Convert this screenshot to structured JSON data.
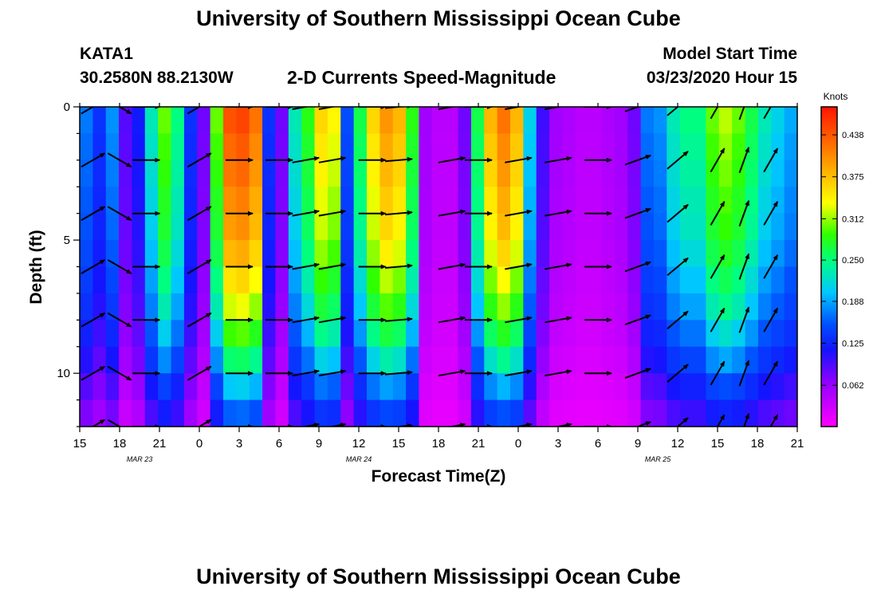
{
  "header": {
    "title": "University of Southern Mississippi Ocean Cube",
    "station": "KATA1",
    "coords": "30.2580N 88.2130W",
    "subtitle": "2-D Currents Speed-Magnitude",
    "start_label": "Model Start Time",
    "start_value": "03/23/2020 Hour 15"
  },
  "footer": {
    "title": "University of Southern Mississippi Ocean Cube"
  },
  "chart_data": {
    "type": "heatmap",
    "xlabel": "Forecast Time(Z)",
    "ylabel": "Depth (ft)",
    "x_range_hours": [
      0,
      54
    ],
    "y_range_ft": [
      0,
      12
    ],
    "y_inverted": true,
    "x_tick_labels": [
      "15",
      "18",
      "21",
      "0",
      "3",
      "6",
      "9",
      "12",
      "15",
      "18",
      "21",
      "0",
      "3",
      "6",
      "9",
      "12",
      "15",
      "18",
      "21"
    ],
    "y_tick_labels": [
      "0",
      "5",
      "10"
    ],
    "y_tick_values": [
      0,
      5,
      10
    ],
    "date_labels": [
      {
        "text": "MAR 23",
        "x_hour": 4.5
      },
      {
        "text": "MAR 24",
        "x_hour": 21
      },
      {
        "text": "MAR 25",
        "x_hour": 43.5
      }
    ],
    "colorbar": {
      "unit_label": "Knots",
      "min": 0.0,
      "max": 0.48,
      "tick_labels": [
        "0.062",
        "0.125",
        "0.188",
        "0.250",
        "0.312",
        "0.375",
        "0.438"
      ],
      "tick_values": [
        0.062,
        0.125,
        0.188,
        0.25,
        0.312,
        0.375,
        0.438
      ]
    },
    "colors": {
      "palette": [
        "#ff00ff",
        "#8f00ff",
        "#1414ff",
        "#0050ff",
        "#00c8ff",
        "#00ff80",
        "#2fff00",
        "#ffff00",
        "#ffb000",
        "#ff6000",
        "#ff1400"
      ]
    },
    "speed_by_hour": [
      0.16,
      0.12,
      0.17,
      0.07,
      0.1,
      0.22,
      0.3,
      0.24,
      0.12,
      0.06,
      0.3,
      0.44,
      0.45,
      0.42,
      0.12,
      0.06,
      0.22,
      0.28,
      0.36,
      0.34,
      0.14,
      0.26,
      0.36,
      0.4,
      0.38,
      0.28,
      0.04,
      0.03,
      0.03,
      0.06,
      0.26,
      0.38,
      0.42,
      0.38,
      0.2,
      0.08,
      0.04,
      0.035,
      0.03,
      0.03,
      0.035,
      0.04,
      0.06,
      0.16,
      0.17,
      0.22,
      0.24,
      0.24,
      0.3,
      0.32,
      0.3,
      0.26,
      0.22,
      0.2,
      0.18
    ],
    "depth_profile": [
      1.0,
      0.97,
      0.95,
      0.92,
      0.9,
      0.86,
      0.8,
      0.74,
      0.66,
      0.56,
      0.44,
      0.34
    ],
    "arrow_columns_hours": [
      1,
      3,
      5,
      9,
      12,
      15,
      17,
      19,
      22,
      24,
      28,
      30,
      33,
      36,
      39,
      42,
      45,
      48,
      50,
      52
    ],
    "arrow_rows_ft": [
      0,
      2,
      4,
      6,
      8,
      10,
      12
    ],
    "arrow_angle_by_column_deg": [
      -30,
      30,
      0,
      -30,
      0,
      0,
      -10,
      -10,
      0,
      -5,
      -10,
      0,
      -10,
      -10,
      0,
      -20,
      -40,
      -60,
      -70,
      -60
    ]
  }
}
